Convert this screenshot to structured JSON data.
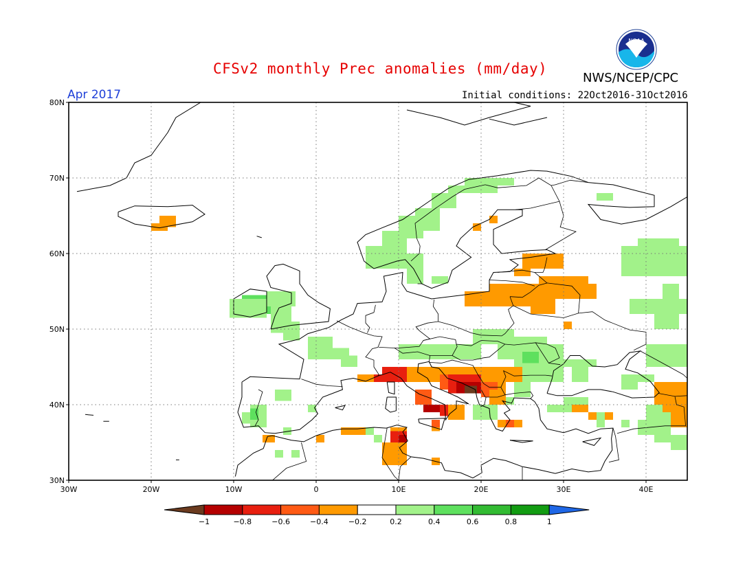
{
  "title": "CFSv2 monthly Prec anomalies (mm/day)",
  "agency": "NWS/NCEP/CPC",
  "valid_month": "Apr 2017",
  "initial_conditions": "Initial conditions: 22Oct2016-31Oct2016",
  "logo_text": "NOAA",
  "map": {
    "region": "Europe",
    "lon_range": [
      -30,
      45
    ],
    "lat_range": [
      30,
      80
    ],
    "lat_labels": [
      "30N",
      "40N",
      "50N",
      "60N",
      "70N",
      "80N"
    ],
    "lon_labels": [
      "30W",
      "20W",
      "10W",
      "0",
      "10E",
      "20E",
      "30E",
      "40E"
    ],
    "grid": "dotted"
  },
  "colorbar": {
    "tick_labels": [
      "−1",
      "−0.8",
      "−0.6",
      "−0.4",
      "−0.2",
      "0.2",
      "0.4",
      "0.6",
      "0.8",
      "1"
    ],
    "colors": [
      "#6b3b1f",
      "#b50000",
      "#e81f0f",
      "#ff5a14",
      "#ff9a00",
      "#ffffff",
      "#a2f28a",
      "#5ee05e",
      "#32bb32",
      "#129c12",
      "#1f67e6"
    ]
  },
  "anomaly_regions": [
    {
      "name": "Iceland",
      "value": -0.3
    },
    {
      "name": "Ireland",
      "value": 0.5
    },
    {
      "name": "Scandinavia coast",
      "value": 0.3
    },
    {
      "name": "Baltic",
      "value": -0.3
    },
    {
      "name": "Western Russia",
      "value": 0.3
    },
    {
      "name": "Northern Italy / Alps",
      "value": -0.6
    },
    {
      "name": "Adriatic / Balkans",
      "value": -0.9
    },
    {
      "name": "Southern Italy",
      "value": -0.6
    },
    {
      "name": "Tunisia",
      "value": -0.4
    },
    {
      "name": "Caucasus",
      "value": -0.3
    }
  ]
}
